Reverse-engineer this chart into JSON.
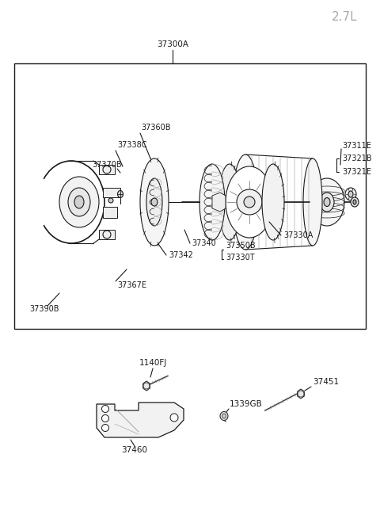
{
  "bg_color": "#ffffff",
  "line_color": "#1a1a1a",
  "label_color": "#1a1a1a",
  "dim_color": "#aaaaaa",
  "title": "2.7L",
  "label_37300A": "37300A",
  "label_37311E": "37311E",
  "label_37321B": "37321B",
  "label_37321E": "37321E",
  "label_37330A": "37330A",
  "label_37330T": "37330T",
  "label_37350B": "37350B",
  "label_37340": "37340",
  "label_37342": "37342",
  "label_37360B": "37360B",
  "label_37338C": "37338C",
  "label_37370B": "37370B",
  "label_37367E": "37367E",
  "label_37390B": "37390B",
  "label_1140FJ": "1140FJ",
  "label_1339GB": "1339GB",
  "label_37451": "37451",
  "label_37460": "37460"
}
